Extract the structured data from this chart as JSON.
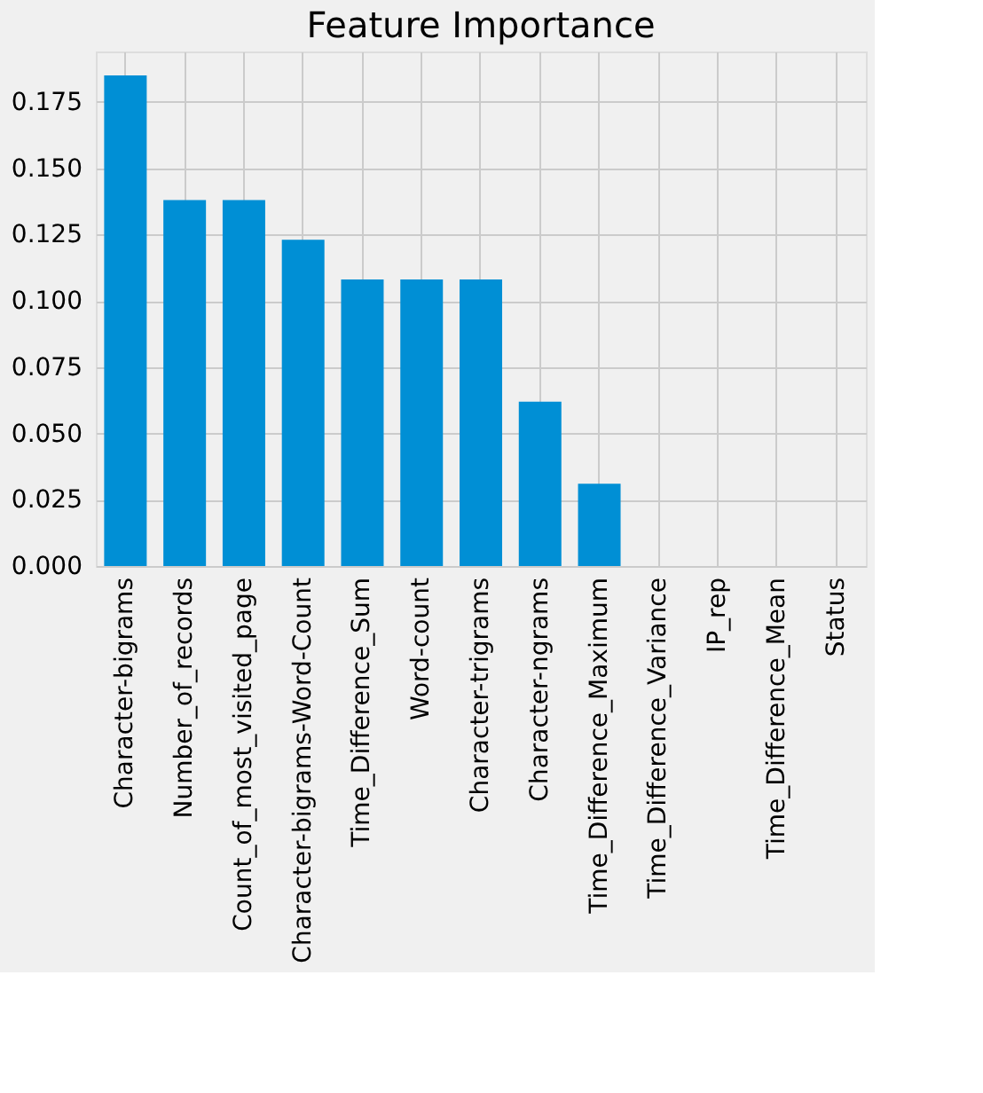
{
  "chart_data": {
    "type": "bar",
    "title": "Feature Importance",
    "categories": [
      "Character-bigrams",
      "Number_of_records",
      "Count_of_most_visited_page",
      "Character-bigrams-Word-Count",
      "Time_Difference_Sum",
      "Word-count",
      "Character-trigrams",
      "Character-ngrams",
      "Time_Difference_Maximum",
      "Time_Difference_Variance",
      "IP_rep",
      "Time_Difference_Mean",
      "Status"
    ],
    "values": [
      0.185,
      0.138,
      0.138,
      0.123,
      0.108,
      0.108,
      0.108,
      0.062,
      0.031,
      0,
      0,
      0,
      0
    ],
    "color": "#008fd5",
    "ylim": [
      0,
      0.194
    ],
    "yticks": [
      {
        "value": 0,
        "label": "0.000"
      },
      {
        "value": 0.025,
        "label": "0.025"
      },
      {
        "value": 0.05,
        "label": "0.050"
      },
      {
        "value": 0.075,
        "label": "0.075"
      },
      {
        "value": 0.1,
        "label": "0.100"
      },
      {
        "value": 0.125,
        "label": "0.125"
      },
      {
        "value": 0.15,
        "label": "0.150"
      },
      {
        "value": 0.175,
        "label": "0.175"
      }
    ],
    "grid": true
  }
}
